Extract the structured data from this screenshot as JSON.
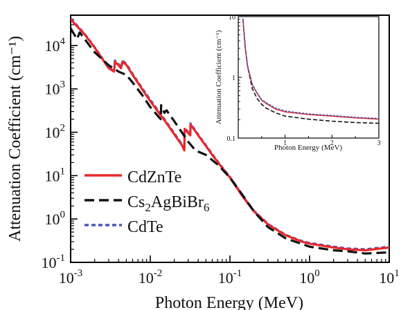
{
  "chart_data": [
    {
      "type": "line",
      "xlabel": "Photon Energy (MeV)",
      "ylabel": "Attenuation Coefficient (cm⁻¹)",
      "xscale": "log",
      "yscale": "log",
      "xlim": [
        0.001,
        10
      ],
      "ylim": [
        0.1,
        50000
      ],
      "xticks": [
        {
          "value": 0.001,
          "base": "10",
          "exp": "-3"
        },
        {
          "value": 0.01,
          "base": "10",
          "exp": "-2"
        },
        {
          "value": 0.1,
          "base": "10",
          "exp": "-1"
        },
        {
          "value": 1,
          "base": "10",
          "exp": "0"
        },
        {
          "value": 10,
          "base": "10",
          "exp": "1"
        }
      ],
      "yticks": [
        {
          "value": 0.1,
          "base": "10",
          "exp": "-1"
        },
        {
          "value": 1,
          "base": "10",
          "exp": "0"
        },
        {
          "value": 10,
          "base": "10",
          "exp": "1"
        },
        {
          "value": 100,
          "base": "10",
          "exp": "2"
        },
        {
          "value": 1000,
          "base": "10",
          "exp": "3"
        },
        {
          "value": 10000,
          "base": "10",
          "exp": "4"
        }
      ],
      "legend_position": "bottom-left",
      "grid": false,
      "series": [
        {
          "name": "CdZnTe",
          "color": "#e8282b",
          "dash": "solid",
          "x": [
            0.001,
            0.0015,
            0.002,
            0.003,
            0.0035,
            0.0036,
            0.004,
            0.0043,
            0.0045,
            0.0047,
            0.005,
            0.006,
            0.008,
            0.01,
            0.015,
            0.02,
            0.025,
            0.0268,
            0.027,
            0.03,
            0.0318,
            0.032,
            0.035,
            0.04,
            0.05,
            0.06,
            0.08,
            0.1,
            0.15,
            0.2,
            0.3,
            0.5,
            0.8,
            1.0,
            2.0,
            3.0,
            5.0,
            10.0
          ],
          "y": [
            40000,
            18000,
            9000,
            3000,
            2500,
            4200,
            3500,
            3000,
            4300,
            3900,
            3600,
            2100,
            950,
            520,
            190,
            90,
            50,
            38,
            120,
            95,
            85,
            150,
            120,
            85,
            48,
            30,
            15,
            9,
            3,
            1.5,
            0.75,
            0.42,
            0.3,
            0.27,
            0.22,
            0.2,
            0.19,
            0.22
          ]
        },
        {
          "name": "Cs2AgBiBr6",
          "color": "#111111",
          "dash": "long-dash",
          "x": [
            0.001,
            0.0012,
            0.0013,
            0.0015,
            0.002,
            0.003,
            0.004,
            0.005,
            0.006,
            0.008,
            0.01,
            0.0135,
            0.0137,
            0.015,
            0.016,
            0.02,
            0.03,
            0.037,
            0.05,
            0.07,
            0.1,
            0.15,
            0.2,
            0.3,
            0.5,
            1.0,
            2.0,
            3.0,
            5.0,
            10.0
          ],
          "y": [
            25000,
            14000,
            20000,
            14000,
            7000,
            3500,
            2500,
            2100,
            1400,
            700,
            380,
            200,
            420,
            280,
            320,
            180,
            60,
            38,
            30,
            18,
            9,
            3.2,
            1.5,
            0.65,
            0.36,
            0.23,
            0.19,
            0.18,
            0.16,
            0.17
          ]
        },
        {
          "name": "CdTe",
          "color": "#4a56b5",
          "dash": "short-dash",
          "x": [
            0.001,
            0.0015,
            0.002,
            0.003,
            0.0035,
            0.0036,
            0.004,
            0.0043,
            0.0045,
            0.0047,
            0.005,
            0.006,
            0.008,
            0.01,
            0.015,
            0.02,
            0.025,
            0.0268,
            0.027,
            0.03,
            0.0318,
            0.032,
            0.035,
            0.04,
            0.05,
            0.06,
            0.08,
            0.1,
            0.15,
            0.2,
            0.3,
            0.5,
            0.8,
            1.0,
            2.0,
            3.0,
            5.0,
            10.0
          ],
          "y": [
            42000,
            18500,
            9200,
            3100,
            2600,
            4500,
            3700,
            3100,
            4600,
            4100,
            3800,
            2200,
            1000,
            560,
            200,
            95,
            52,
            40,
            125,
            100,
            90,
            160,
            125,
            88,
            50,
            31,
            15.5,
            9.3,
            3.1,
            1.55,
            0.77,
            0.43,
            0.31,
            0.28,
            0.23,
            0.21,
            0.2,
            0.23
          ]
        }
      ]
    },
    {
      "type": "line",
      "xlabel": "Photon Energy (MeV)",
      "ylabel": "Attenuation Coefficient (cm⁻¹)",
      "xscale": "linear",
      "yscale": "log",
      "xlim": [
        0,
        3
      ],
      "ylim": [
        0.1,
        10
      ],
      "xticks": [
        "1",
        "2",
        "3"
      ],
      "yticks": [
        "0.1",
        "1",
        "10"
      ],
      "grid": false,
      "series": [
        {
          "name": "CdZnTe",
          "color": "#e8282b",
          "dash": "solid",
          "x": [
            0.1,
            0.15,
            0.2,
            0.3,
            0.4,
            0.5,
            0.6,
            0.8,
            1.0,
            1.5,
            2.0,
            2.5,
            3.0
          ],
          "y": [
            9,
            3,
            1.5,
            0.75,
            0.55,
            0.42,
            0.37,
            0.3,
            0.27,
            0.245,
            0.23,
            0.215,
            0.205
          ]
        },
        {
          "name": "Cs2AgBiBr6",
          "color": "#111111",
          "dash": "long-dash",
          "x": [
            0.1,
            0.15,
            0.2,
            0.3,
            0.4,
            0.5,
            0.6,
            0.8,
            1.0,
            1.5,
            2.0,
            2.5,
            3.0
          ],
          "y": [
            9,
            3.2,
            1.5,
            0.65,
            0.45,
            0.36,
            0.31,
            0.26,
            0.23,
            0.205,
            0.19,
            0.18,
            0.175
          ]
        },
        {
          "name": "CdTe",
          "color": "#4a56b5",
          "dash": "short-dash",
          "x": [
            0.1,
            0.15,
            0.2,
            0.3,
            0.4,
            0.5,
            0.6,
            0.8,
            1.0,
            1.5,
            2.0,
            2.5,
            3.0
          ],
          "y": [
            9.3,
            3.1,
            1.55,
            0.77,
            0.56,
            0.43,
            0.38,
            0.31,
            0.28,
            0.25,
            0.235,
            0.22,
            0.21
          ]
        }
      ]
    }
  ],
  "legend": {
    "items": [
      {
        "key": "CdZnTe",
        "text": "CdZnTe"
      },
      {
        "key": "Cs2AgBiBr6",
        "parts": [
          "Cs",
          "2",
          "AgBiBr",
          "6"
        ]
      },
      {
        "key": "CdTe",
        "text": "CdTe"
      }
    ]
  }
}
